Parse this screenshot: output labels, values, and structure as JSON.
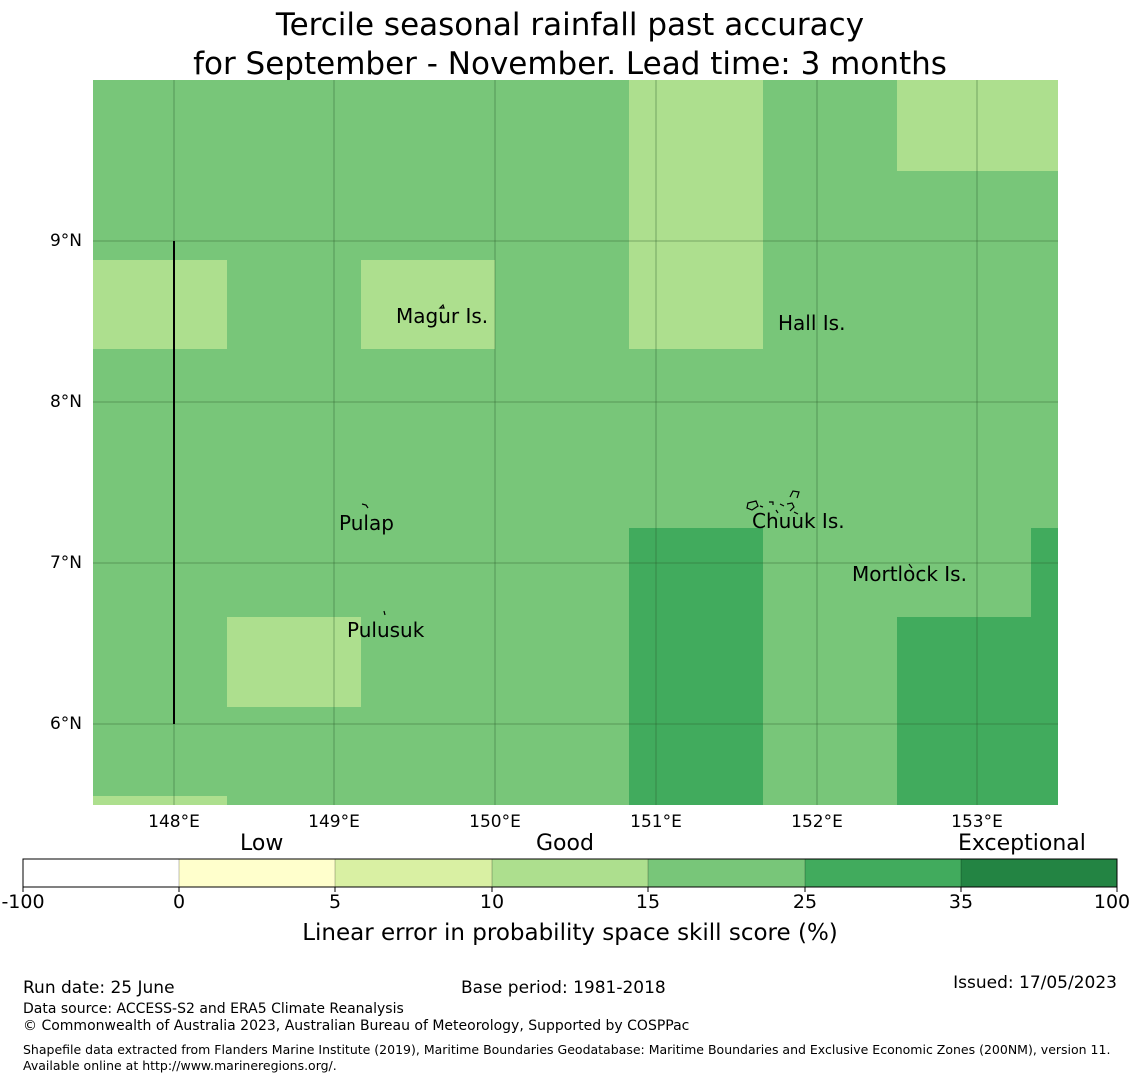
{
  "title": {
    "line1": "Tercile seasonal rainfall past accuracy",
    "line2": "for September - November. Lead time: 3 months"
  },
  "map": {
    "lat_ticks": [
      "9°N",
      "8°N",
      "7°N",
      "6°N"
    ],
    "lon_ticks": [
      "148°E",
      "149°E",
      "150°E",
      "151°E",
      "152°E",
      "153°E"
    ],
    "places": [
      "Magur Is.",
      "Hall Is.",
      "Pulap",
      "Chuuk Is.",
      "Mortlock Is.",
      "Pulusuk"
    ],
    "colors": {
      "c10_15": "#addf8e",
      "c15_25": "#78c679",
      "c25_35": "#41ab5d"
    }
  },
  "colorbar": {
    "categories": [
      "Low",
      "Good",
      "Exceptional"
    ],
    "ticks": [
      "-100",
      "0",
      "5",
      "10",
      "15",
      "25",
      "35",
      "100"
    ],
    "colors": [
      "#ffffff",
      "#ffffcc",
      "#d9f0a3",
      "#addf8e",
      "#78c679",
      "#41ab5d",
      "#238443"
    ],
    "label": "Linear error in probability space skill score (%)"
  },
  "footer": {
    "run_date": "Run date: 25 June",
    "base_period": "Base period: 1981-2018",
    "issued": "Issued: 17/05/2023",
    "data_source": "Data source: ACCESS-S2 and ERA5 Climate Reanalysis",
    "copyright": "© Commonwealth of Australia 2023, Australian Bureau of Meteorology, Supported by COSPPac",
    "shapefile": "Shapefile data extracted from Flanders Marine Institute (2019), Maritime Boundaries Geodatabase: Maritime Boundaries and Exclusive Economic Zones (200NM), version 11. Available online at http://www.marineregions.org/."
  }
}
